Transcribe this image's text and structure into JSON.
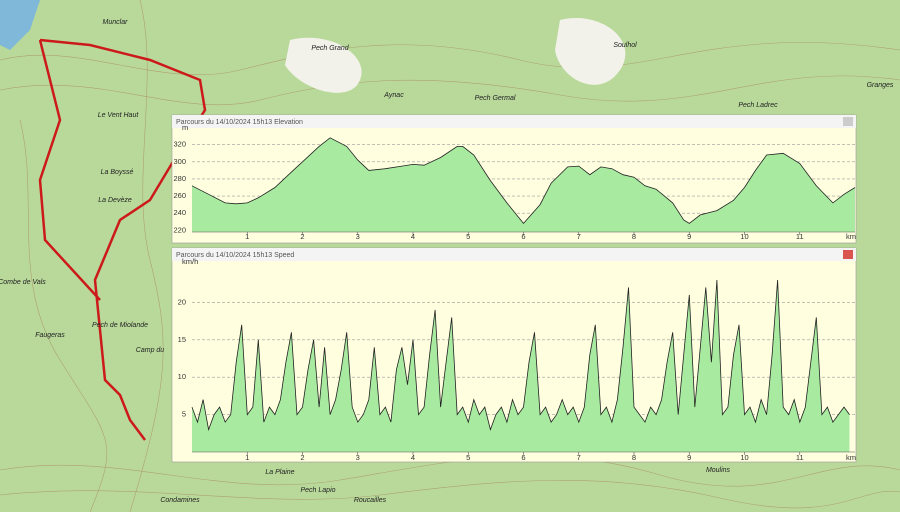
{
  "map_labels": [
    "Munclar",
    "Pech Grand",
    "Aynac",
    "Pech Germal",
    "Soulhol",
    "Pech Ladrec",
    "Granges",
    "Le Vent Haut",
    "La Boyssé",
    "La Devèze",
    "Combe de Vals",
    "Faugeras",
    "Pech de Miolande",
    "Camp du",
    "La Plaine",
    "Pech Lapio",
    "Roucailles",
    "Condamines",
    "Moulins"
  ],
  "chart_data": [
    {
      "type": "area",
      "title": "Parcours du 14/10/2024 15h13 Elevation",
      "y_label": "m",
      "x_label": "km",
      "color": "#a8eaa0",
      "line_color": "#222222",
      "grid": true,
      "x": [
        0,
        0.3,
        0.6,
        0.8,
        1.0,
        1.2,
        1.5,
        1.8,
        2.0,
        2.3,
        2.5,
        2.8,
        3.0,
        3.2,
        3.5,
        3.8,
        4.0,
        4.2,
        4.5,
        4.8,
        4.9,
        5.1,
        5.4,
        5.7,
        6.0,
        6.3,
        6.5,
        6.8,
        7.0,
        7.2,
        7.4,
        7.6,
        7.8,
        8.0,
        8.2,
        8.4,
        8.7,
        8.9,
        9.0,
        9.2,
        9.5,
        9.8,
        10.0,
        10.2,
        10.4,
        10.7,
        11.0,
        11.3,
        11.6,
        11.8,
        12.0
      ],
      "values": [
        272,
        262,
        252,
        251,
        252,
        258,
        270,
        288,
        300,
        318,
        328,
        318,
        302,
        290,
        292,
        295,
        297,
        296,
        305,
        318,
        318,
        308,
        278,
        252,
        228,
        250,
        275,
        294,
        295,
        285,
        294,
        292,
        285,
        282,
        272,
        268,
        252,
        232,
        228,
        238,
        243,
        255,
        270,
        290,
        308,
        310,
        298,
        272,
        252,
        262,
        270
      ],
      "xlim": [
        0,
        12
      ],
      "ylim": [
        218,
        336
      ],
      "xticks": [
        1,
        2,
        3,
        4,
        5,
        6,
        7,
        8,
        9,
        10,
        11
      ],
      "yticks": [
        220,
        240,
        260,
        280,
        300,
        320
      ]
    },
    {
      "type": "area",
      "title": "Parcours du 14/10/2024 15h13 Speed",
      "y_label": "km/h",
      "x_label": "km",
      "color": "#a8eaa0",
      "line_color": "#222222",
      "grid": true,
      "x": [
        0,
        0.1,
        0.2,
        0.3,
        0.4,
        0.5,
        0.6,
        0.7,
        0.8,
        0.9,
        1.0,
        1.1,
        1.2,
        1.3,
        1.4,
        1.5,
        1.6,
        1.7,
        1.8,
        1.9,
        2.0,
        2.1,
        2.2,
        2.3,
        2.4,
        2.5,
        2.6,
        2.7,
        2.8,
        2.9,
        3.0,
        3.1,
        3.2,
        3.3,
        3.4,
        3.5,
        3.6,
        3.7,
        3.8,
        3.9,
        4.0,
        4.1,
        4.2,
        4.3,
        4.4,
        4.5,
        4.6,
        4.7,
        4.8,
        4.9,
        5.0,
        5.1,
        5.2,
        5.3,
        5.4,
        5.5,
        5.6,
        5.7,
        5.8,
        5.9,
        6.0,
        6.1,
        6.2,
        6.3,
        6.4,
        6.5,
        6.6,
        6.7,
        6.8,
        6.9,
        7.0,
        7.1,
        7.2,
        7.3,
        7.4,
        7.5,
        7.6,
        7.7,
        7.8,
        7.9,
        8.0,
        8.1,
        8.2,
        8.3,
        8.4,
        8.5,
        8.6,
        8.7,
        8.8,
        8.9,
        9.0,
        9.1,
        9.2,
        9.3,
        9.4,
        9.5,
        9.6,
        9.7,
        9.8,
        9.9,
        10.0,
        10.1,
        10.2,
        10.3,
        10.4,
        10.5,
        10.6,
        10.7,
        10.8,
        10.9,
        11.0,
        11.1,
        11.2,
        11.3,
        11.4,
        11.5,
        11.6,
        11.7,
        11.8,
        11.9
      ],
      "values": [
        6,
        4,
        7,
        3,
        5,
        6,
        4,
        5,
        12,
        17,
        5,
        6,
        15,
        4,
        6,
        5,
        7,
        12,
        16,
        5,
        6,
        11,
        15,
        6,
        14,
        5,
        7,
        11,
        16,
        6,
        4,
        5,
        7,
        14,
        5,
        6,
        4,
        11,
        14,
        9,
        15,
        5,
        6,
        13,
        19,
        6,
        12,
        18,
        5,
        6,
        4,
        7,
        5,
        6,
        3,
        5,
        6,
        4,
        7,
        5,
        6,
        12,
        16,
        5,
        6,
        4,
        5,
        7,
        5,
        6,
        4,
        6,
        13,
        17,
        5,
        6,
        4,
        7,
        14,
        22,
        6,
        5,
        4,
        6,
        5,
        7,
        12,
        16,
        5,
        13,
        21,
        6,
        14,
        22,
        12,
        23,
        5,
        6,
        13,
        17,
        5,
        6,
        4,
        7,
        5,
        13,
        23,
        6,
        5,
        7,
        4,
        6,
        12,
        18,
        5,
        6,
        4,
        5,
        6,
        5
      ],
      "xlim": [
        0,
        12
      ],
      "ylim": [
        0,
        25
      ],
      "xticks": [
        1,
        2,
        3,
        4,
        5,
        6,
        7,
        8,
        9,
        10,
        11
      ],
      "yticks": [
        5,
        10,
        15,
        20
      ]
    }
  ]
}
